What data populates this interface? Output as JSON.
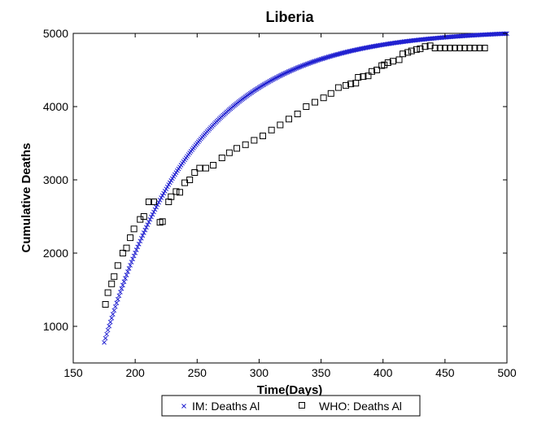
{
  "chart_data": {
    "type": "scatter",
    "title": "Liberia",
    "xlabel": "Time(Days)",
    "ylabel": "Cumulative Deaths",
    "xlim": [
      150,
      500
    ],
    "ylim": [
      500,
      5000
    ],
    "xticks": [
      150,
      200,
      250,
      300,
      350,
      400,
      450,
      500
    ],
    "yticks": [
      1000,
      2000,
      3000,
      4000,
      5000
    ],
    "grid": false,
    "legend_position": "bottom-outside",
    "colors": {
      "im": "#1f1fd0",
      "who": "#000000"
    },
    "series": [
      {
        "name": "IM: Deaths Al",
        "marker": "x",
        "model": {
          "x_start": 175,
          "x_end": 500,
          "step": 1,
          "K": 5050,
          "y0": 780,
          "r": 0.0135
        }
      },
      {
        "name": "WHO: Deaths Al",
        "marker": "square",
        "points": [
          [
            176,
            1300
          ],
          [
            178,
            1460
          ],
          [
            181,
            1580
          ],
          [
            183,
            1680
          ],
          [
            186,
            1830
          ],
          [
            190,
            2000
          ],
          [
            193,
            2070
          ],
          [
            196,
            2210
          ],
          [
            199,
            2330
          ],
          [
            204,
            2460
          ],
          [
            207,
            2500
          ],
          [
            211,
            2700
          ],
          [
            215,
            2700
          ],
          [
            220,
            2420
          ],
          [
            222,
            2430
          ],
          [
            227,
            2700
          ],
          [
            229,
            2770
          ],
          [
            233,
            2840
          ],
          [
            236,
            2830
          ],
          [
            240,
            2960
          ],
          [
            244,
            3000
          ],
          [
            248,
            3100
          ],
          [
            252,
            3160
          ],
          [
            257,
            3160
          ],
          [
            263,
            3200
          ],
          [
            270,
            3300
          ],
          [
            276,
            3370
          ],
          [
            282,
            3430
          ],
          [
            289,
            3480
          ],
          [
            296,
            3540
          ],
          [
            303,
            3600
          ],
          [
            310,
            3680
          ],
          [
            317,
            3750
          ],
          [
            324,
            3830
          ],
          [
            331,
            3900
          ],
          [
            338,
            4000
          ],
          [
            345,
            4060
          ],
          [
            352,
            4120
          ],
          [
            358,
            4180
          ],
          [
            364,
            4260
          ],
          [
            370,
            4290
          ],
          [
            374,
            4310
          ],
          [
            378,
            4320
          ],
          [
            380,
            4400
          ],
          [
            384,
            4410
          ],
          [
            388,
            4420
          ],
          [
            391,
            4480
          ],
          [
            395,
            4500
          ],
          [
            399,
            4560
          ],
          [
            401,
            4570
          ],
          [
            404,
            4600
          ],
          [
            408,
            4620
          ],
          [
            413,
            4640
          ],
          [
            416,
            4720
          ],
          [
            420,
            4740
          ],
          [
            423,
            4760
          ],
          [
            427,
            4780
          ],
          [
            430,
            4790
          ],
          [
            434,
            4820
          ],
          [
            438,
            4830
          ],
          [
            442,
            4800
          ],
          [
            446,
            4800
          ],
          [
            450,
            4800
          ],
          [
            454,
            4800
          ],
          [
            458,
            4800
          ],
          [
            462,
            4800
          ],
          [
            466,
            4800
          ],
          [
            470,
            4800
          ],
          [
            474,
            4800
          ],
          [
            478,
            4800
          ],
          [
            482,
            4800
          ]
        ]
      }
    ]
  }
}
